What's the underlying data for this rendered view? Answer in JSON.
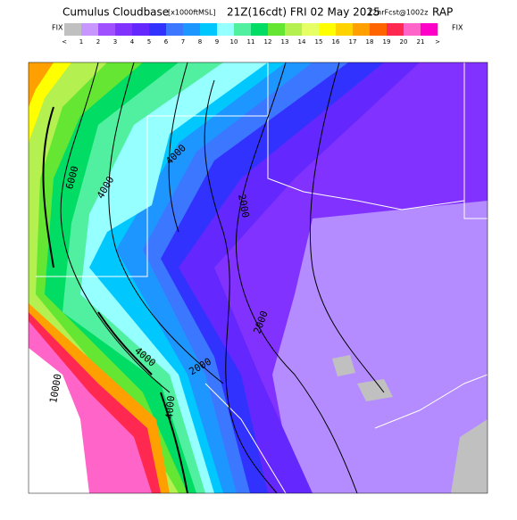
{
  "header": {
    "title": "Cumulus Cloudbase",
    "units": "[x1000ftMSL]",
    "time": "21Z(16cdt) FRI 02 May 2025",
    "forecast": "12hrFcst@1002z",
    "model": "RAP"
  },
  "colorbar": {
    "left_label": "FIX",
    "right_label": "FIX",
    "labels": [
      "<",
      "1",
      "2",
      "3",
      "4",
      "5",
      "6",
      "7",
      "8",
      "9",
      "10",
      "11",
      "12",
      "13",
      "14",
      "15",
      "16",
      "17",
      "18",
      "19",
      "20",
      "21",
      ">"
    ],
    "colors": [
      "#c0c0c0",
      "#c896ff",
      "#a050ff",
      "#8232ff",
      "#6428ff",
      "#3232ff",
      "#3c78ff",
      "#1e96ff",
      "#00c8ff",
      "#96ffff",
      "#50f0a0",
      "#00dc64",
      "#64e632",
      "#b4f050",
      "#e6ff64",
      "#ffff00",
      "#ffd200",
      "#ffa000",
      "#ff6400",
      "#ff2850",
      "#ff64c8",
      "#ff00c8"
    ]
  },
  "contour_labels": [
    "6000",
    "4000",
    "4000",
    "2000",
    "2000",
    "4000",
    "2000",
    "10000",
    "4000"
  ]
}
